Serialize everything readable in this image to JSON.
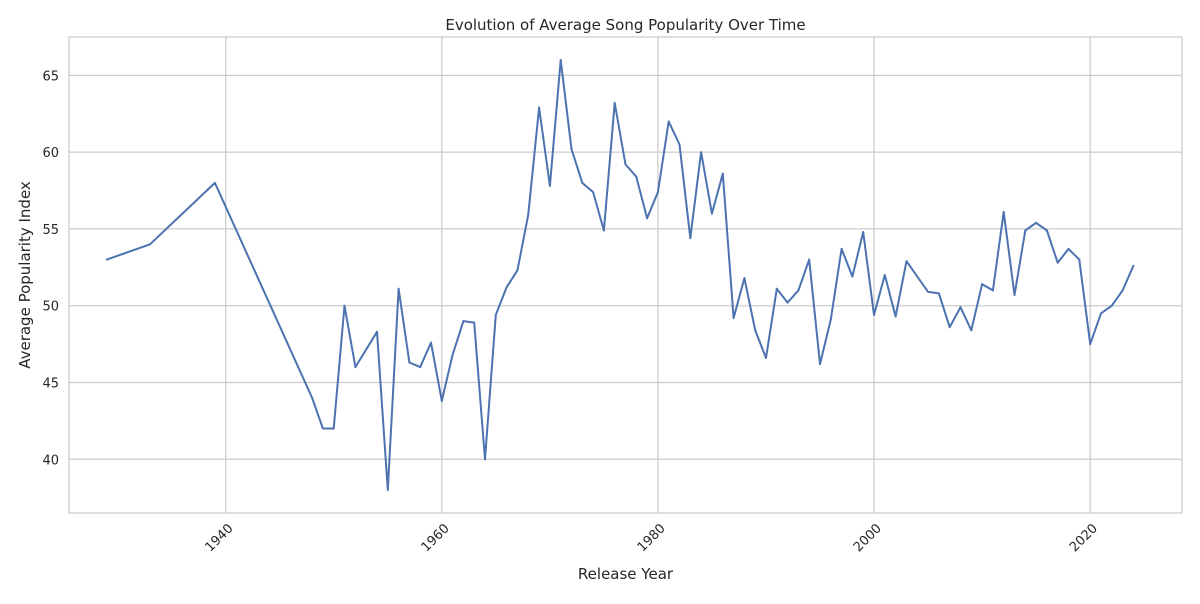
{
  "chart_data": {
    "type": "line",
    "title": "Evolution of Average Song Popularity Over Time",
    "xlabel": "Release Year",
    "ylabel": "Average Popularity Index",
    "xlim": [
      1925.5,
      1928.0
    ],
    "ylim": [
      36.5,
      67.5
    ],
    "x_ticks": [
      "1940",
      "1960",
      "1980",
      "2000",
      "2020"
    ],
    "y_ticks": [
      "40",
      "45",
      "50",
      "55",
      "60",
      "65"
    ],
    "grid": true,
    "colors": {
      "line": "#4c72b0",
      "grid": "#cccccc",
      "frame": "#cccccc"
    },
    "series": [
      {
        "x": [
          1929,
          1933,
          1939,
          1948,
          1949,
          1950,
          1951,
          1952,
          1954,
          1955,
          1956,
          1957,
          1958,
          1959,
          1960,
          1961,
          1962,
          1963,
          1964,
          1965,
          1966,
          1967,
          1968,
          1969,
          1970,
          1971,
          1972,
          1973,
          1974,
          1975,
          1976,
          1977,
          1978,
          1979,
          1980,
          1981,
          1982,
          1983,
          1984,
          1985,
          1986,
          1987,
          1988,
          1989,
          1990,
          1991,
          1992,
          1993,
          1994,
          1995,
          1996,
          1997,
          1998,
          1999,
          2000,
          2001,
          2002,
          2003,
          2005,
          2006,
          2007,
          2008,
          2009,
          2010,
          2011,
          2012,
          2013,
          2014,
          2015,
          2016,
          2017,
          2018,
          2019,
          2020,
          2021,
          2022,
          2023,
          2024
        ],
        "values": [
          53.0,
          54.0,
          58.0,
          44.0,
          42.0,
          42.0,
          50.0,
          46.0,
          48.3,
          38.0,
          51.1,
          46.3,
          46.0,
          47.6,
          43.8,
          46.8,
          49.0,
          48.9,
          40.0,
          49.4,
          51.2,
          52.3,
          55.9,
          62.9,
          57.8,
          66.0,
          60.2,
          58.0,
          57.4,
          54.9,
          63.2,
          59.2,
          58.4,
          55.7,
          57.4,
          62.0,
          60.5,
          54.4,
          60.0,
          56.0,
          58.6,
          49.2,
          51.8,
          48.4,
          46.6,
          51.1,
          50.2,
          51.0,
          53.0,
          46.2,
          49.1,
          53.7,
          51.9,
          54.8,
          49.4,
          52.0,
          49.3,
          52.9,
          50.9,
          50.8,
          48.6,
          49.9,
          48.4,
          51.4,
          51.0,
          56.1,
          50.7,
          54.9,
          55.4,
          54.9,
          52.8,
          53.7,
          53.0,
          47.5,
          49.5,
          50.0,
          51.0,
          52.6
        ]
      }
    ]
  }
}
